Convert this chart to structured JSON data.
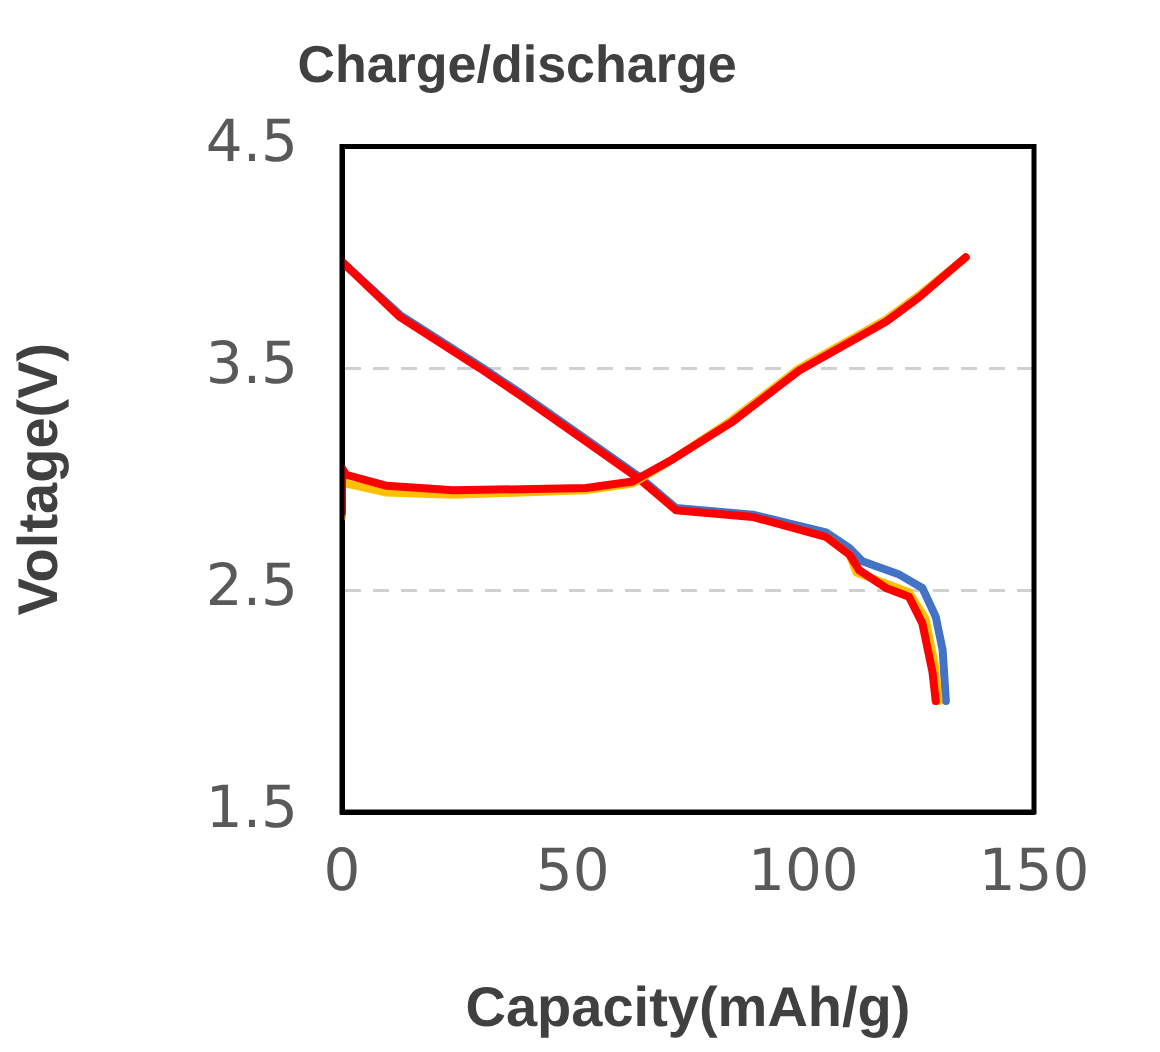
{
  "chart_data": {
    "type": "line",
    "title": "Charge/discharge",
    "xlabel": "Capacity(mAh/g)",
    "ylabel": "Voltage(V)",
    "xlim": [
      0,
      150
    ],
    "xticks": [
      0,
      50,
      100,
      150
    ],
    "ylim": [
      1.5,
      4.5
    ],
    "yticks": [
      1.5,
      2.5,
      3.5,
      4.5
    ],
    "grid": "y",
    "legend": false,
    "marker": "none",
    "line_style": "solid",
    "series": [
      {
        "color": "#4472c4",
        "x": [
          0,
          12.6,
          29.9,
          38.5,
          52.9,
          64.5,
          72.4,
          89,
          104.9,
          110,
          112.8,
          120.8,
          125.8,
          128.7,
          130.2,
          130.9
        ],
        "values": [
          3.98,
          3.74,
          3.51,
          3.39,
          3.18,
          3.01,
          2.87,
          2.84,
          2.76,
          2.69,
          2.63,
          2.57,
          2.51,
          2.38,
          2.23,
          2.0
        ]
      },
      {
        "color": "#ffc000",
        "x": [
          104.9,
          110,
          111.5,
          117.9,
          122.9,
          126.5,
          128.6,
          129.3
        ],
        "values": [
          2.74,
          2.66,
          2.58,
          2.53,
          2.49,
          2.37,
          2.15,
          2.0
        ]
      },
      {
        "color": "#ff0000",
        "x": [
          0,
          12.6,
          29.9,
          38.5,
          52.9,
          64.5,
          72.4,
          89,
          104.9,
          110,
          112.1,
          117.9,
          122.9,
          125.8,
          128,
          128.7
        ],
        "values": [
          3.98,
          3.73,
          3.5,
          3.38,
          3.17,
          3.0,
          2.86,
          2.83,
          2.74,
          2.66,
          2.59,
          2.51,
          2.47,
          2.35,
          2.13,
          2.0
        ]
      },
      {
        "color": "#ffc000",
        "x": [
          0,
          0,
          0.9,
          9.7,
          24.1,
          52.9,
          63,
          71.7,
          84.7,
          99.1,
          117.9,
          125.1,
          135.2
        ],
        "values": [
          2.83,
          3.0,
          2.98,
          2.94,
          2.93,
          2.95,
          2.98,
          3.09,
          3.27,
          3.5,
          3.72,
          3.83,
          4.0
        ]
      },
      {
        "color": "#ff0000",
        "x": [
          0,
          0,
          0.9,
          9.7,
          24.1,
          52.9,
          63,
          71.7,
          84.7,
          99.1,
          117.9,
          125.1,
          135.2
        ],
        "values": [
          2.85,
          3.05,
          3.02,
          2.97,
          2.95,
          2.96,
          2.99,
          3.09,
          3.26,
          3.49,
          3.71,
          3.82,
          4.0
        ]
      }
    ]
  }
}
